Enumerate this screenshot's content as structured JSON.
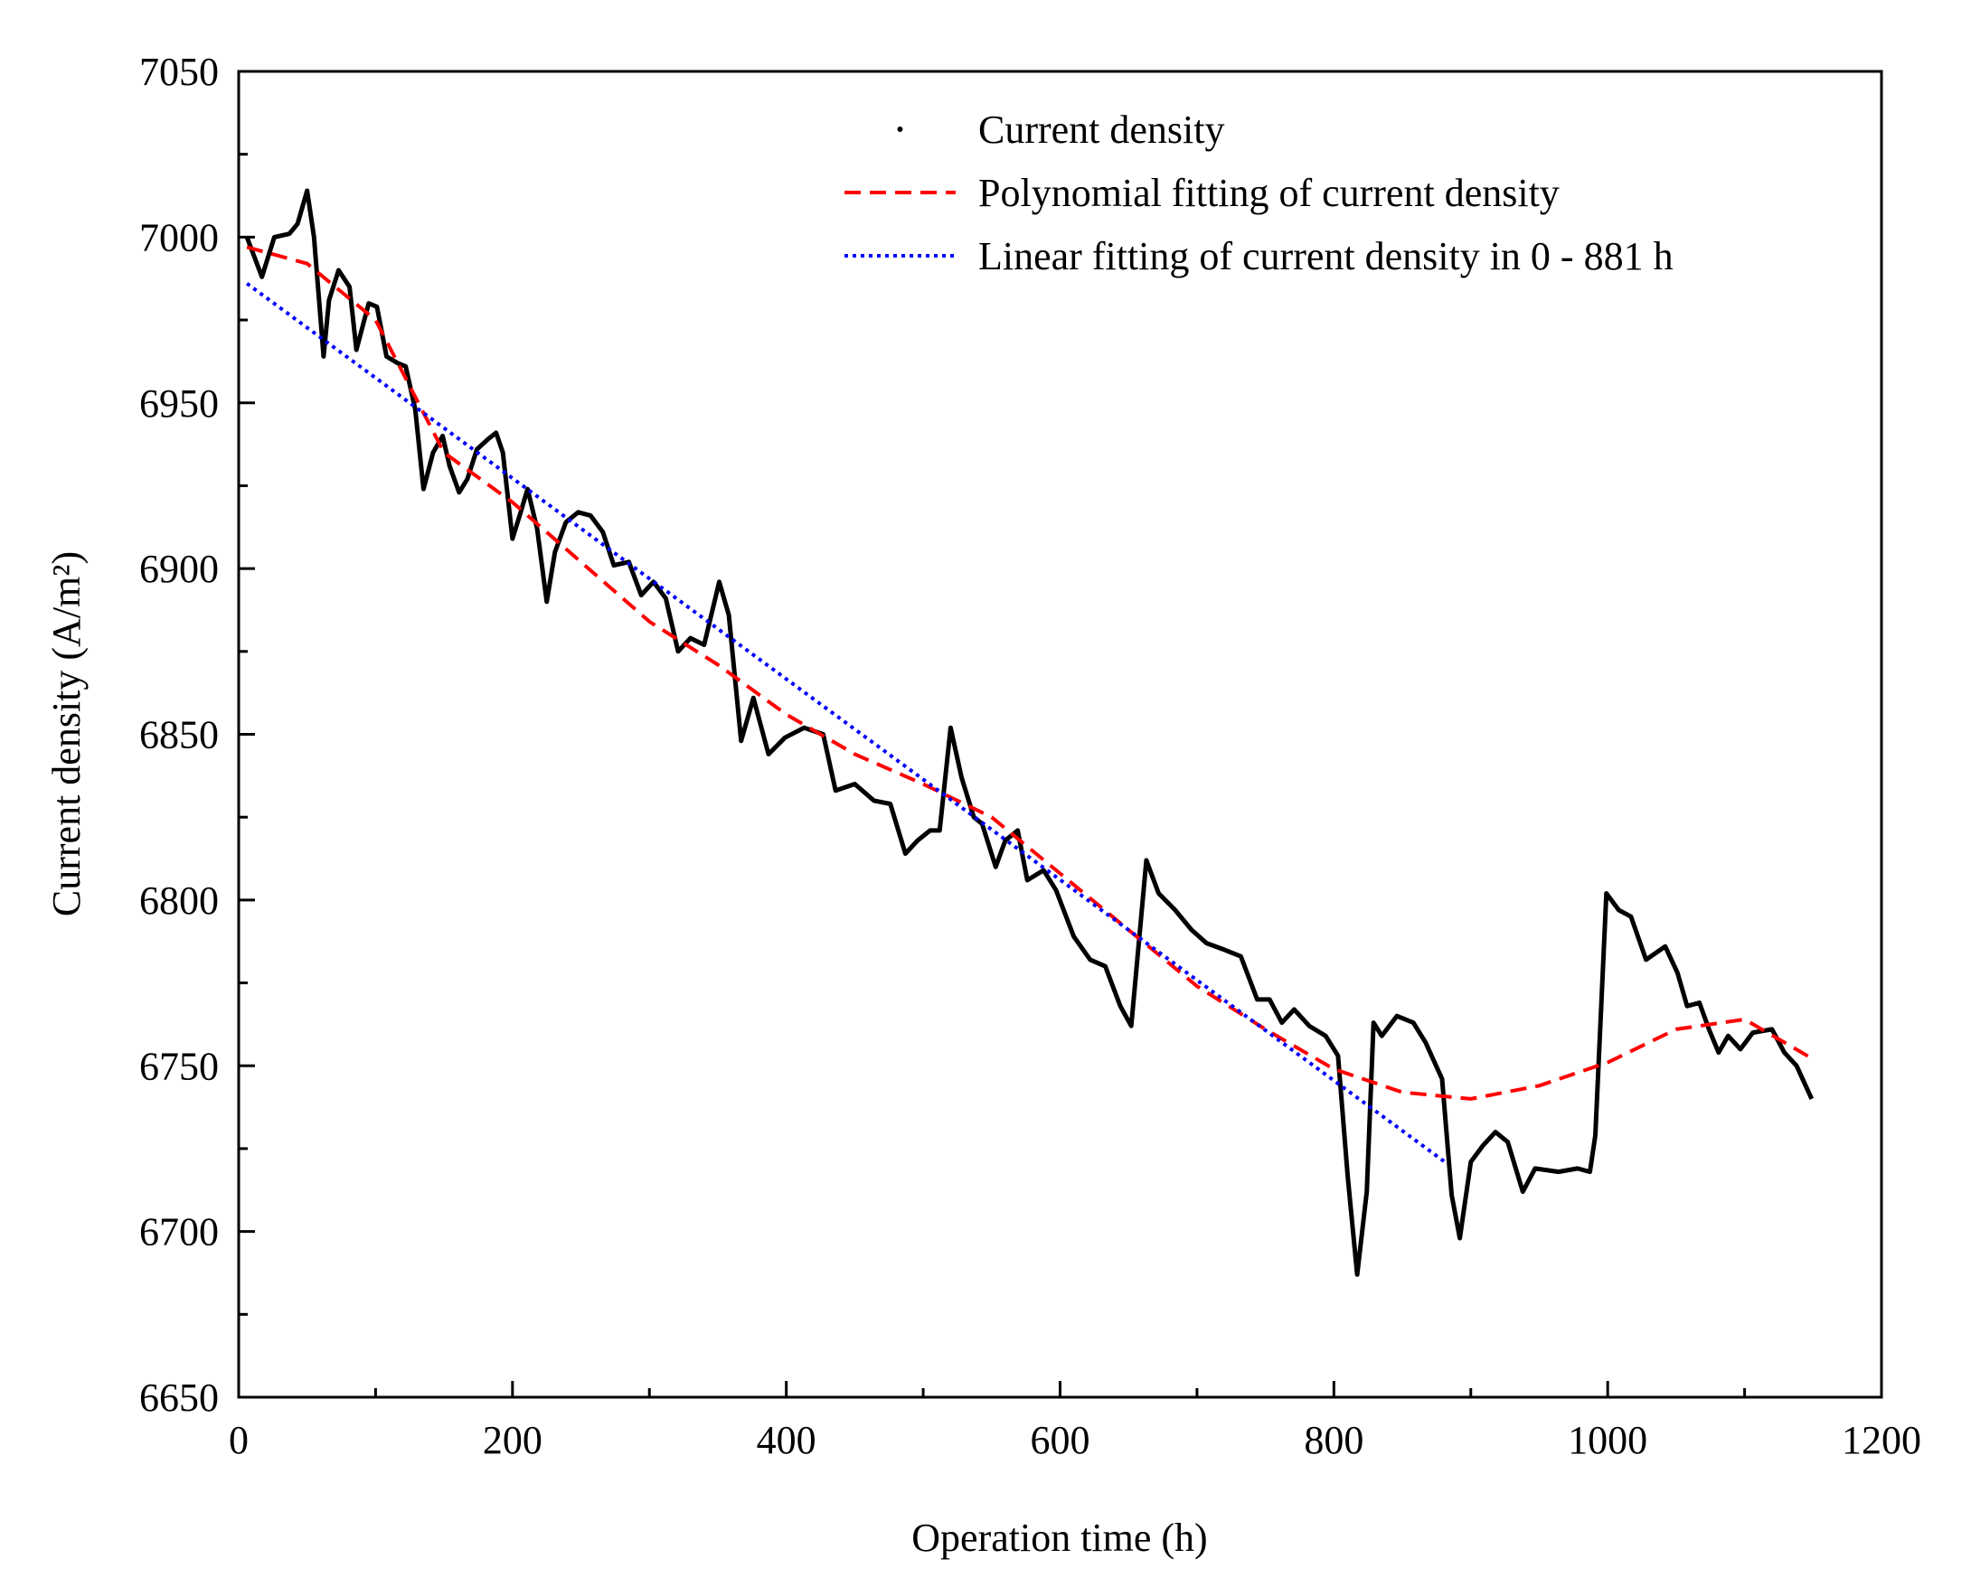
{
  "chart_data": {
    "type": "line",
    "xlabel": "Operation time (h)",
    "ylabel": "Current density (A/m²)",
    "xlim": [
      0,
      1200
    ],
    "ylim": [
      6650,
      7050
    ],
    "xticks": [
      0,
      200,
      400,
      600,
      800,
      1000,
      1200
    ],
    "yticks": [
      6650,
      6700,
      6750,
      6800,
      6850,
      6900,
      6950,
      7000,
      7050
    ],
    "xminorticks": [
      100,
      300,
      500,
      700,
      900,
      1100
    ],
    "yminorticks": [
      6675,
      6725,
      6775,
      6825,
      6875,
      6925,
      6975,
      7025
    ],
    "legend": "upper right",
    "series": [
      {
        "name": "Current density",
        "color": "#000000",
        "style": "solid",
        "x": [
          6,
          17,
          26,
          37,
          43,
          50,
          55,
          62,
          66,
          73,
          81,
          86,
          95,
          101,
          108,
          116,
          122,
          129,
          135,
          142,
          149,
          154,
          161,
          167,
          174,
          182,
          188,
          193,
          200,
          206,
          211,
          218,
          225,
          231,
          239,
          248,
          257,
          266,
          274,
          285,
          294,
          303,
          312,
          321,
          330,
          340,
          351,
          358,
          367,
          376,
          387,
          399,
          413,
          427,
          436,
          450,
          464,
          476,
          487,
          496,
          505,
          512,
          520,
          528,
          537,
          543,
          553,
          560,
          569,
          576,
          588,
          597,
          610,
          622,
          633,
          644,
          652,
          663,
          672,
          684,
          696,
          707,
          720,
          732,
          744,
          753,
          762,
          771,
          782,
          794,
          803,
          810,
          817,
          824,
          829,
          835,
          846,
          858,
          867,
          879,
          886,
          892,
          900,
          909,
          918,
          927,
          938,
          947,
          964,
          978,
          987,
          991,
          999,
          1008,
          1017,
          1028,
          1042,
          1051,
          1058,
          1067,
          1074,
          1081,
          1088,
          1097,
          1106,
          1120,
          1129,
          1138,
          1149
        ],
        "values": [
          7000,
          6988,
          7000,
          7001,
          7004,
          7014,
          7000,
          6964,
          6981,
          6990,
          6985,
          6966,
          6980,
          6979,
          6964,
          6962,
          6961,
          6948,
          6924,
          6935,
          6940,
          6931,
          6923,
          6927,
          6936,
          6939,
          6941,
          6935,
          6909,
          6917,
          6924,
          6912,
          6890,
          6905,
          6914,
          6917,
          6916,
          6911,
          6901,
          6902,
          6892,
          6896,
          6891,
          6875,
          6879,
          6877,
          6896,
          6886,
          6848,
          6861,
          6844,
          6849,
          6852,
          6850,
          6833,
          6835,
          6830,
          6829,
          6814,
          6818,
          6821,
          6821,
          6852,
          6837,
          6825,
          6823,
          6810,
          6818,
          6821,
          6806,
          6809,
          6803,
          6789,
          6782,
          6780,
          6768,
          6762,
          6812,
          6802,
          6797,
          6791,
          6787,
          6785,
          6783,
          6770,
          6770,
          6763,
          6767,
          6762,
          6759,
          6753,
          6717,
          6687,
          6712,
          6763,
          6759,
          6765,
          6763,
          6757,
          6746,
          6711,
          6698,
          6721,
          6726,
          6730,
          6727,
          6712,
          6719,
          6718,
          6719,
          6718,
          6729,
          6802,
          6797,
          6795,
          6782,
          6786,
          6778,
          6768,
          6769,
          6761,
          6754,
          6759,
          6755,
          6760,
          6761,
          6754,
          6750,
          6740
        ]
      },
      {
        "name": "Polynomial fitting of current density",
        "color": "#ff0000",
        "style": "dashed",
        "x": [
          6,
          50,
          100,
          150,
          200,
          250,
          300,
          350,
          400,
          450,
          500,
          550,
          600,
          650,
          700,
          750,
          800,
          850,
          900,
          950,
          1000,
          1050,
          1100,
          1150
        ],
        "values": [
          6997,
          6992,
          6975,
          6935,
          6920,
          6902,
          6884,
          6871,
          6856,
          6844,
          6835,
          6825,
          6808,
          6791,
          6774,
          6761,
          6749,
          6742,
          6740,
          6744,
          6751,
          6761,
          6764,
          6752
        ]
      },
      {
        "name": "Linear fitting of current density in 0 - 881 h",
        "color": "#0000ff",
        "style": "dotted",
        "x": [
          6,
          881
        ],
        "values": [
          6986,
          6721
        ]
      }
    ]
  }
}
